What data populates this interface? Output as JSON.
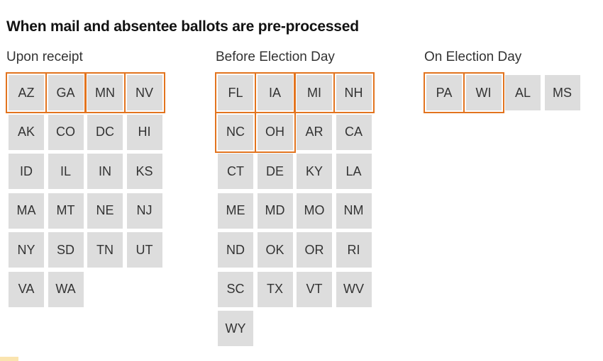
{
  "title": "When mail and absentee ballots are pre-processed",
  "colors": {
    "tile_fill": "#dddddd",
    "highlight_outline": "#e2741f",
    "text": "#333333"
  },
  "groups": [
    {
      "label": "Upon receipt",
      "states": [
        {
          "abbr": "AZ",
          "highlighted": true
        },
        {
          "abbr": "GA",
          "highlighted": true
        },
        {
          "abbr": "MN",
          "highlighted": true
        },
        {
          "abbr": "NV",
          "highlighted": true
        },
        {
          "abbr": "AK",
          "highlighted": false
        },
        {
          "abbr": "CO",
          "highlighted": false
        },
        {
          "abbr": "DC",
          "highlighted": false
        },
        {
          "abbr": "HI",
          "highlighted": false
        },
        {
          "abbr": "ID",
          "highlighted": false
        },
        {
          "abbr": "IL",
          "highlighted": false
        },
        {
          "abbr": "IN",
          "highlighted": false
        },
        {
          "abbr": "KS",
          "highlighted": false
        },
        {
          "abbr": "MA",
          "highlighted": false
        },
        {
          "abbr": "MT",
          "highlighted": false
        },
        {
          "abbr": "NE",
          "highlighted": false
        },
        {
          "abbr": "NJ",
          "highlighted": false
        },
        {
          "abbr": "NY",
          "highlighted": false
        },
        {
          "abbr": "SD",
          "highlighted": false
        },
        {
          "abbr": "TN",
          "highlighted": false
        },
        {
          "abbr": "UT",
          "highlighted": false
        },
        {
          "abbr": "VA",
          "highlighted": false
        },
        {
          "abbr": "WA",
          "highlighted": false
        }
      ]
    },
    {
      "label": "Before Election Day",
      "states": [
        {
          "abbr": "FL",
          "highlighted": true
        },
        {
          "abbr": "IA",
          "highlighted": true
        },
        {
          "abbr": "MI",
          "highlighted": true
        },
        {
          "abbr": "NH",
          "highlighted": true
        },
        {
          "abbr": "NC",
          "highlighted": true
        },
        {
          "abbr": "OH",
          "highlighted": true
        },
        {
          "abbr": "AR",
          "highlighted": false
        },
        {
          "abbr": "CA",
          "highlighted": false
        },
        {
          "abbr": "CT",
          "highlighted": false
        },
        {
          "abbr": "DE",
          "highlighted": false
        },
        {
          "abbr": "KY",
          "highlighted": false
        },
        {
          "abbr": "LA",
          "highlighted": false
        },
        {
          "abbr": "ME",
          "highlighted": false
        },
        {
          "abbr": "MD",
          "highlighted": false
        },
        {
          "abbr": "MO",
          "highlighted": false
        },
        {
          "abbr": "NM",
          "highlighted": false
        },
        {
          "abbr": "ND",
          "highlighted": false
        },
        {
          "abbr": "OK",
          "highlighted": false
        },
        {
          "abbr": "OR",
          "highlighted": false
        },
        {
          "abbr": "RI",
          "highlighted": false
        },
        {
          "abbr": "SC",
          "highlighted": false
        },
        {
          "abbr": "TX",
          "highlighted": false
        },
        {
          "abbr": "VT",
          "highlighted": false
        },
        {
          "abbr": "WV",
          "highlighted": false
        },
        {
          "abbr": "WY",
          "highlighted": false
        }
      ]
    },
    {
      "label": "On Election Day",
      "states": [
        {
          "abbr": "PA",
          "highlighted": true
        },
        {
          "abbr": "WI",
          "highlighted": true
        },
        {
          "abbr": "AL",
          "highlighted": false
        },
        {
          "abbr": "MS",
          "highlighted": false
        }
      ]
    }
  ]
}
